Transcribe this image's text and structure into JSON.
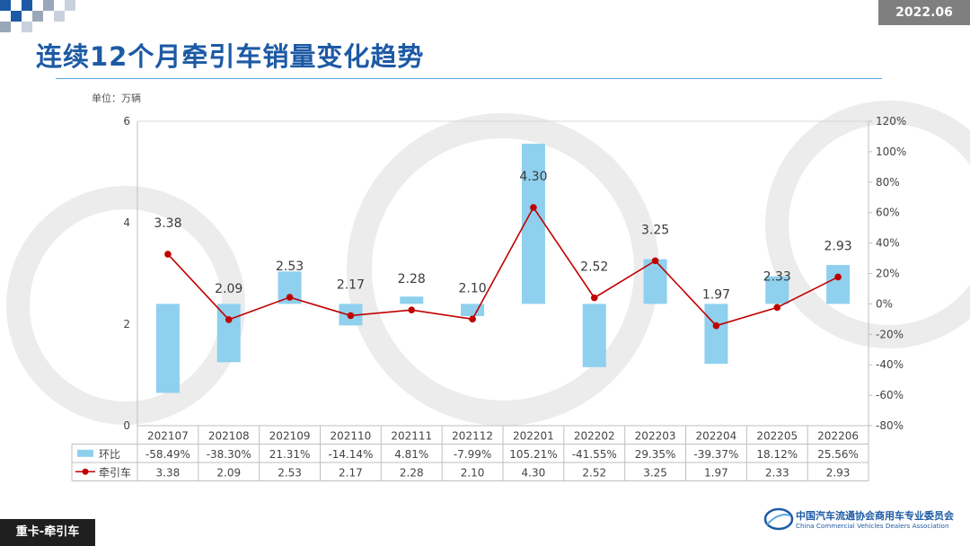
{
  "header": {
    "date": "2022.06",
    "title": "连续12个月牵引车销量变化趋势"
  },
  "chart_data": {
    "type": "bar",
    "unit_label": "单位：万辆",
    "categories": [
      "202107",
      "202108",
      "202109",
      "202110",
      "202111",
      "202112",
      "202201",
      "202202",
      "202203",
      "202204",
      "202205",
      "202206"
    ],
    "series": [
      {
        "name": "环比",
        "kind": "bar",
        "axis": "right",
        "color": "#8ed0ee",
        "values": [
          -58.49,
          -38.3,
          21.31,
          -14.14,
          4.81,
          -7.99,
          105.21,
          -41.55,
          29.35,
          -39.37,
          18.12,
          25.56
        ],
        "labels": [
          "-58.49%",
          "-38.30%",
          "21.31%",
          "-14.14%",
          "4.81%",
          "-7.99%",
          "105.21%",
          "-41.55%",
          "29.35%",
          "-39.37%",
          "18.12%",
          "25.56%"
        ]
      },
      {
        "name": "牵引车",
        "kind": "line",
        "axis": "left",
        "color": "#c00000",
        "values": [
          3.38,
          2.09,
          2.53,
          2.17,
          2.28,
          2.1,
          4.3,
          2.52,
          3.25,
          1.97,
          2.33,
          2.93
        ],
        "labels": [
          "3.38",
          "2.09",
          "2.53",
          "2.17",
          "2.28",
          "2.10",
          "4.30",
          "2.52",
          "3.25",
          "1.97",
          "2.33",
          "2.93"
        ]
      }
    ],
    "y_left": {
      "range": [
        0,
        6
      ],
      "ticks": [
        0,
        2,
        4,
        6
      ],
      "tick_labels": [
        "0",
        "2",
        "4",
        "6"
      ]
    },
    "y_right": {
      "range": [
        -80,
        120
      ],
      "ticks": [
        -80,
        -60,
        -40,
        -20,
        0,
        20,
        40,
        60,
        80,
        100,
        120
      ],
      "tick_labels": [
        "-80%",
        "-60%",
        "-40%",
        "-20%",
        "0%",
        "20%",
        "40%",
        "60%",
        "80%",
        "100%",
        "120%"
      ]
    },
    "grid": false,
    "legend_placement": "data-table"
  },
  "footer": {
    "tag": "重卡-牵引车",
    "org_cn": "中国汽车流通协会商用车专业委员会",
    "org_en": "China Commercial Vehicles Dealers Association"
  },
  "colors": {
    "accent": "#1d5aa5",
    "bar": "#8ed0ee",
    "line": "#c00000"
  }
}
